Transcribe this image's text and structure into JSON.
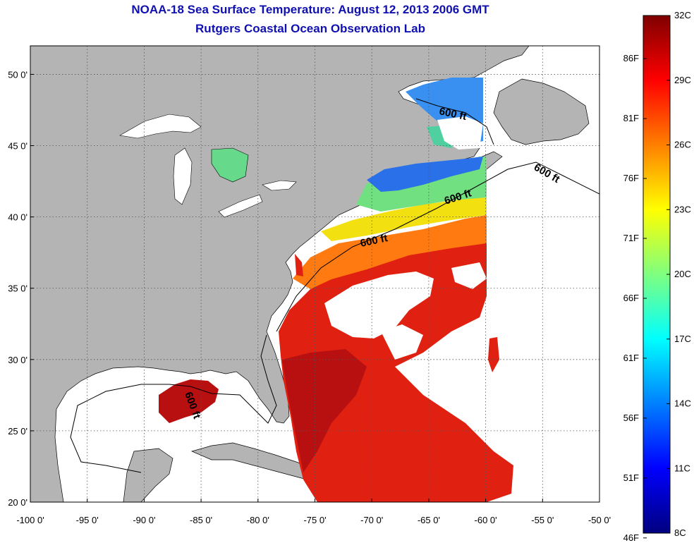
{
  "title": {
    "line1": "NOAA-18 Sea Surface Temperature:  August 12, 2013 2006 GMT",
    "line2": "Rutgers Coastal Ocean Observation Lab"
  },
  "map": {
    "lon_range": [
      -100,
      -50
    ],
    "lat_range": [
      20,
      52
    ],
    "lon_ticks": [
      "-100 0'",
      "-95 0'",
      "-90 0'",
      "-85 0'",
      "-80 0'",
      "-75 0'",
      "-70 0'",
      "-65 0'",
      "-60 0'",
      "-55 0'",
      "-50 0'"
    ],
    "lon_values": [
      -100,
      -95,
      -90,
      -85,
      -80,
      -75,
      -70,
      -65,
      -60,
      -55,
      -50
    ],
    "lat_ticks": [
      "20 0'",
      "25 0'",
      "30 0'",
      "35 0'",
      "40 0'",
      "45 0'",
      "50 0'"
    ],
    "lat_values": [
      20,
      25,
      30,
      35,
      40,
      45,
      50
    ],
    "grid": true,
    "land_color": "#b4b4b4",
    "cloud_color": "#ffffff",
    "contour_label": "600 ft"
  },
  "colorbar": {
    "range_c": [
      8,
      32
    ],
    "celsius_labels": [
      "32C",
      "29C",
      "26C",
      "23C",
      "20C",
      "17C",
      "14C",
      "11C",
      "8C"
    ],
    "celsius_values": [
      32,
      29,
      26,
      23,
      20,
      17,
      14,
      11,
      8
    ],
    "fahrenheit_labels": [
      "86F",
      "81F",
      "76F",
      "71F",
      "66F",
      "61F",
      "56F",
      "51F",
      "46F"
    ],
    "fahrenheit_values": [
      86,
      81,
      76,
      71,
      66,
      61,
      56,
      51,
      46
    ],
    "colormap": [
      "#00007f",
      "#0000ff",
      "#007fff",
      "#00ffff",
      "#7fff7f",
      "#ffff00",
      "#ff7f00",
      "#ff0000",
      "#7f0000"
    ]
  }
}
